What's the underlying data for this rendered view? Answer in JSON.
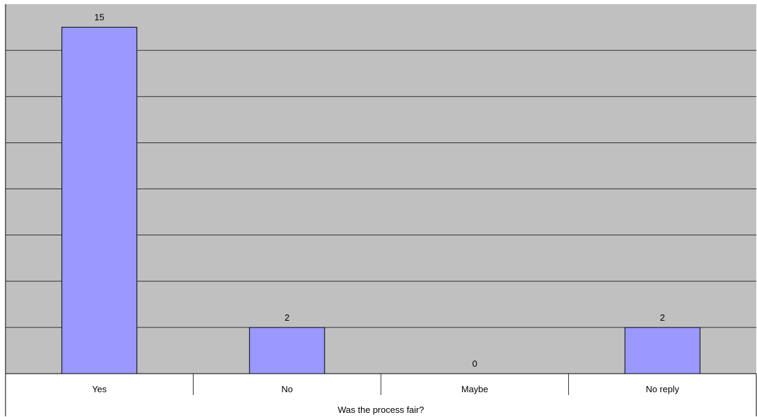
{
  "chart_data": {
    "type": "bar",
    "categories": [
      "Yes",
      "No",
      "Maybe",
      "No reply"
    ],
    "values": [
      15,
      2,
      0,
      2
    ],
    "title": "",
    "xlabel": "Was the process fair?",
    "ylabel": "",
    "ylim": [
      0,
      16
    ],
    "grid": true,
    "legend": "none",
    "colors": {
      "plot_background": "#c0c0c0",
      "bar_fill": "#9999ff",
      "bar_stroke": "#000000",
      "grid": "#000000"
    }
  }
}
